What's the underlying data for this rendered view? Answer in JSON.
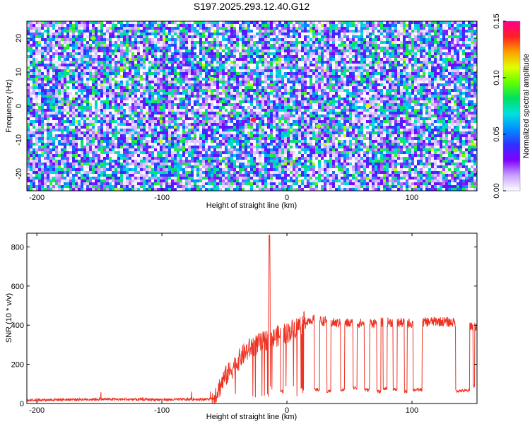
{
  "title": "S197.2025.293.12.40.G12",
  "chart_data": [
    {
      "type": "heatmap",
      "title": "S197.2025.293.12.40.G12",
      "xlabel": "Height of straight line (km)",
      "ylabel": "Frequency (Hz)",
      "xlim": [
        -208,
        152
      ],
      "ylim": [
        -25,
        25
      ],
      "x_ticks": [
        -200,
        -100,
        0,
        100
      ],
      "y_ticks": [
        -20,
        -10,
        0,
        10,
        20
      ],
      "colorbar": {
        "label": "Normalized spectral amplitude",
        "range": [
          0.0,
          0.15
        ],
        "ticks": [
          "0.00",
          "0.05",
          "0.10",
          "0.15"
        ],
        "colors": [
          "#ffffff",
          "#c8a0ff",
          "#8000ff",
          "#3030ff",
          "#0090ff",
          "#00e0e0",
          "#00e060",
          "#60ff00",
          "#e0ff00",
          "#ffa000",
          "#ff2020",
          "#ff0090"
        ]
      },
      "notes": "Speckled spectrogram, amplitude mostly 0.02-0.08 with isolated peaks up to ~0.14 near x=-27 km, f=-4 Hz"
    },
    {
      "type": "line",
      "xlabel": "Height of straight line (km)",
      "ylabel": "SNR (10 * v/v)",
      "xlim": [
        -208,
        152
      ],
      "ylim": [
        0,
        870
      ],
      "x_ticks": [
        -200,
        -100,
        0,
        100
      ],
      "y_ticks": [
        0,
        200,
        400,
        600,
        800
      ],
      "series": [
        {
          "name": "SNR",
          "color": "#ee3324",
          "profile": {
            "x": [
              -208,
              -150,
              -100,
              -60,
              -55,
              -50,
              -45,
              -40,
              -35,
              -30,
              -25,
              -20,
              -15,
              -14,
              -13,
              -12,
              -10,
              -5,
              0,
              5,
              10,
              15,
              20,
              30,
              40,
              60,
              80,
              100,
              120,
              140,
              152
            ],
            "y": [
              18,
              22,
              20,
              22,
              70,
              130,
              170,
              210,
              250,
              280,
              300,
              310,
              330,
              860,
              330,
              320,
              340,
              350,
              360,
              380,
              400,
              420,
              430,
              420,
              410,
              410,
              415,
              410,
              420,
              410,
              390
            ]
          },
          "dropouts": [
            {
              "x": [
                -5,
                -3
              ],
              "y": 60
            },
            {
              "x": [
                22,
                26
              ],
              "y": 70
            },
            {
              "x": [
                32,
                35
              ],
              "y": 60
            },
            {
              "x": [
                43,
                46
              ],
              "y": 70
            },
            {
              "x": [
                53,
                56
              ],
              "y": 80
            },
            {
              "x": [
                62,
                66
              ],
              "y": 70
            },
            {
              "x": [
                72,
                75
              ],
              "y": 60
            },
            {
              "x": [
                77,
                80
              ],
              "y": 75
            },
            {
              "x": [
                85,
                88
              ],
              "y": 70
            },
            {
              "x": [
                94,
                96
              ],
              "y": 60
            },
            {
              "x": [
                101,
                108
              ],
              "y": 70
            },
            {
              "x": [
                135,
                146
              ],
              "y": 65
            },
            {
              "x": [
                149,
                150
              ],
              "y": 90
            }
          ]
        }
      ]
    }
  ]
}
